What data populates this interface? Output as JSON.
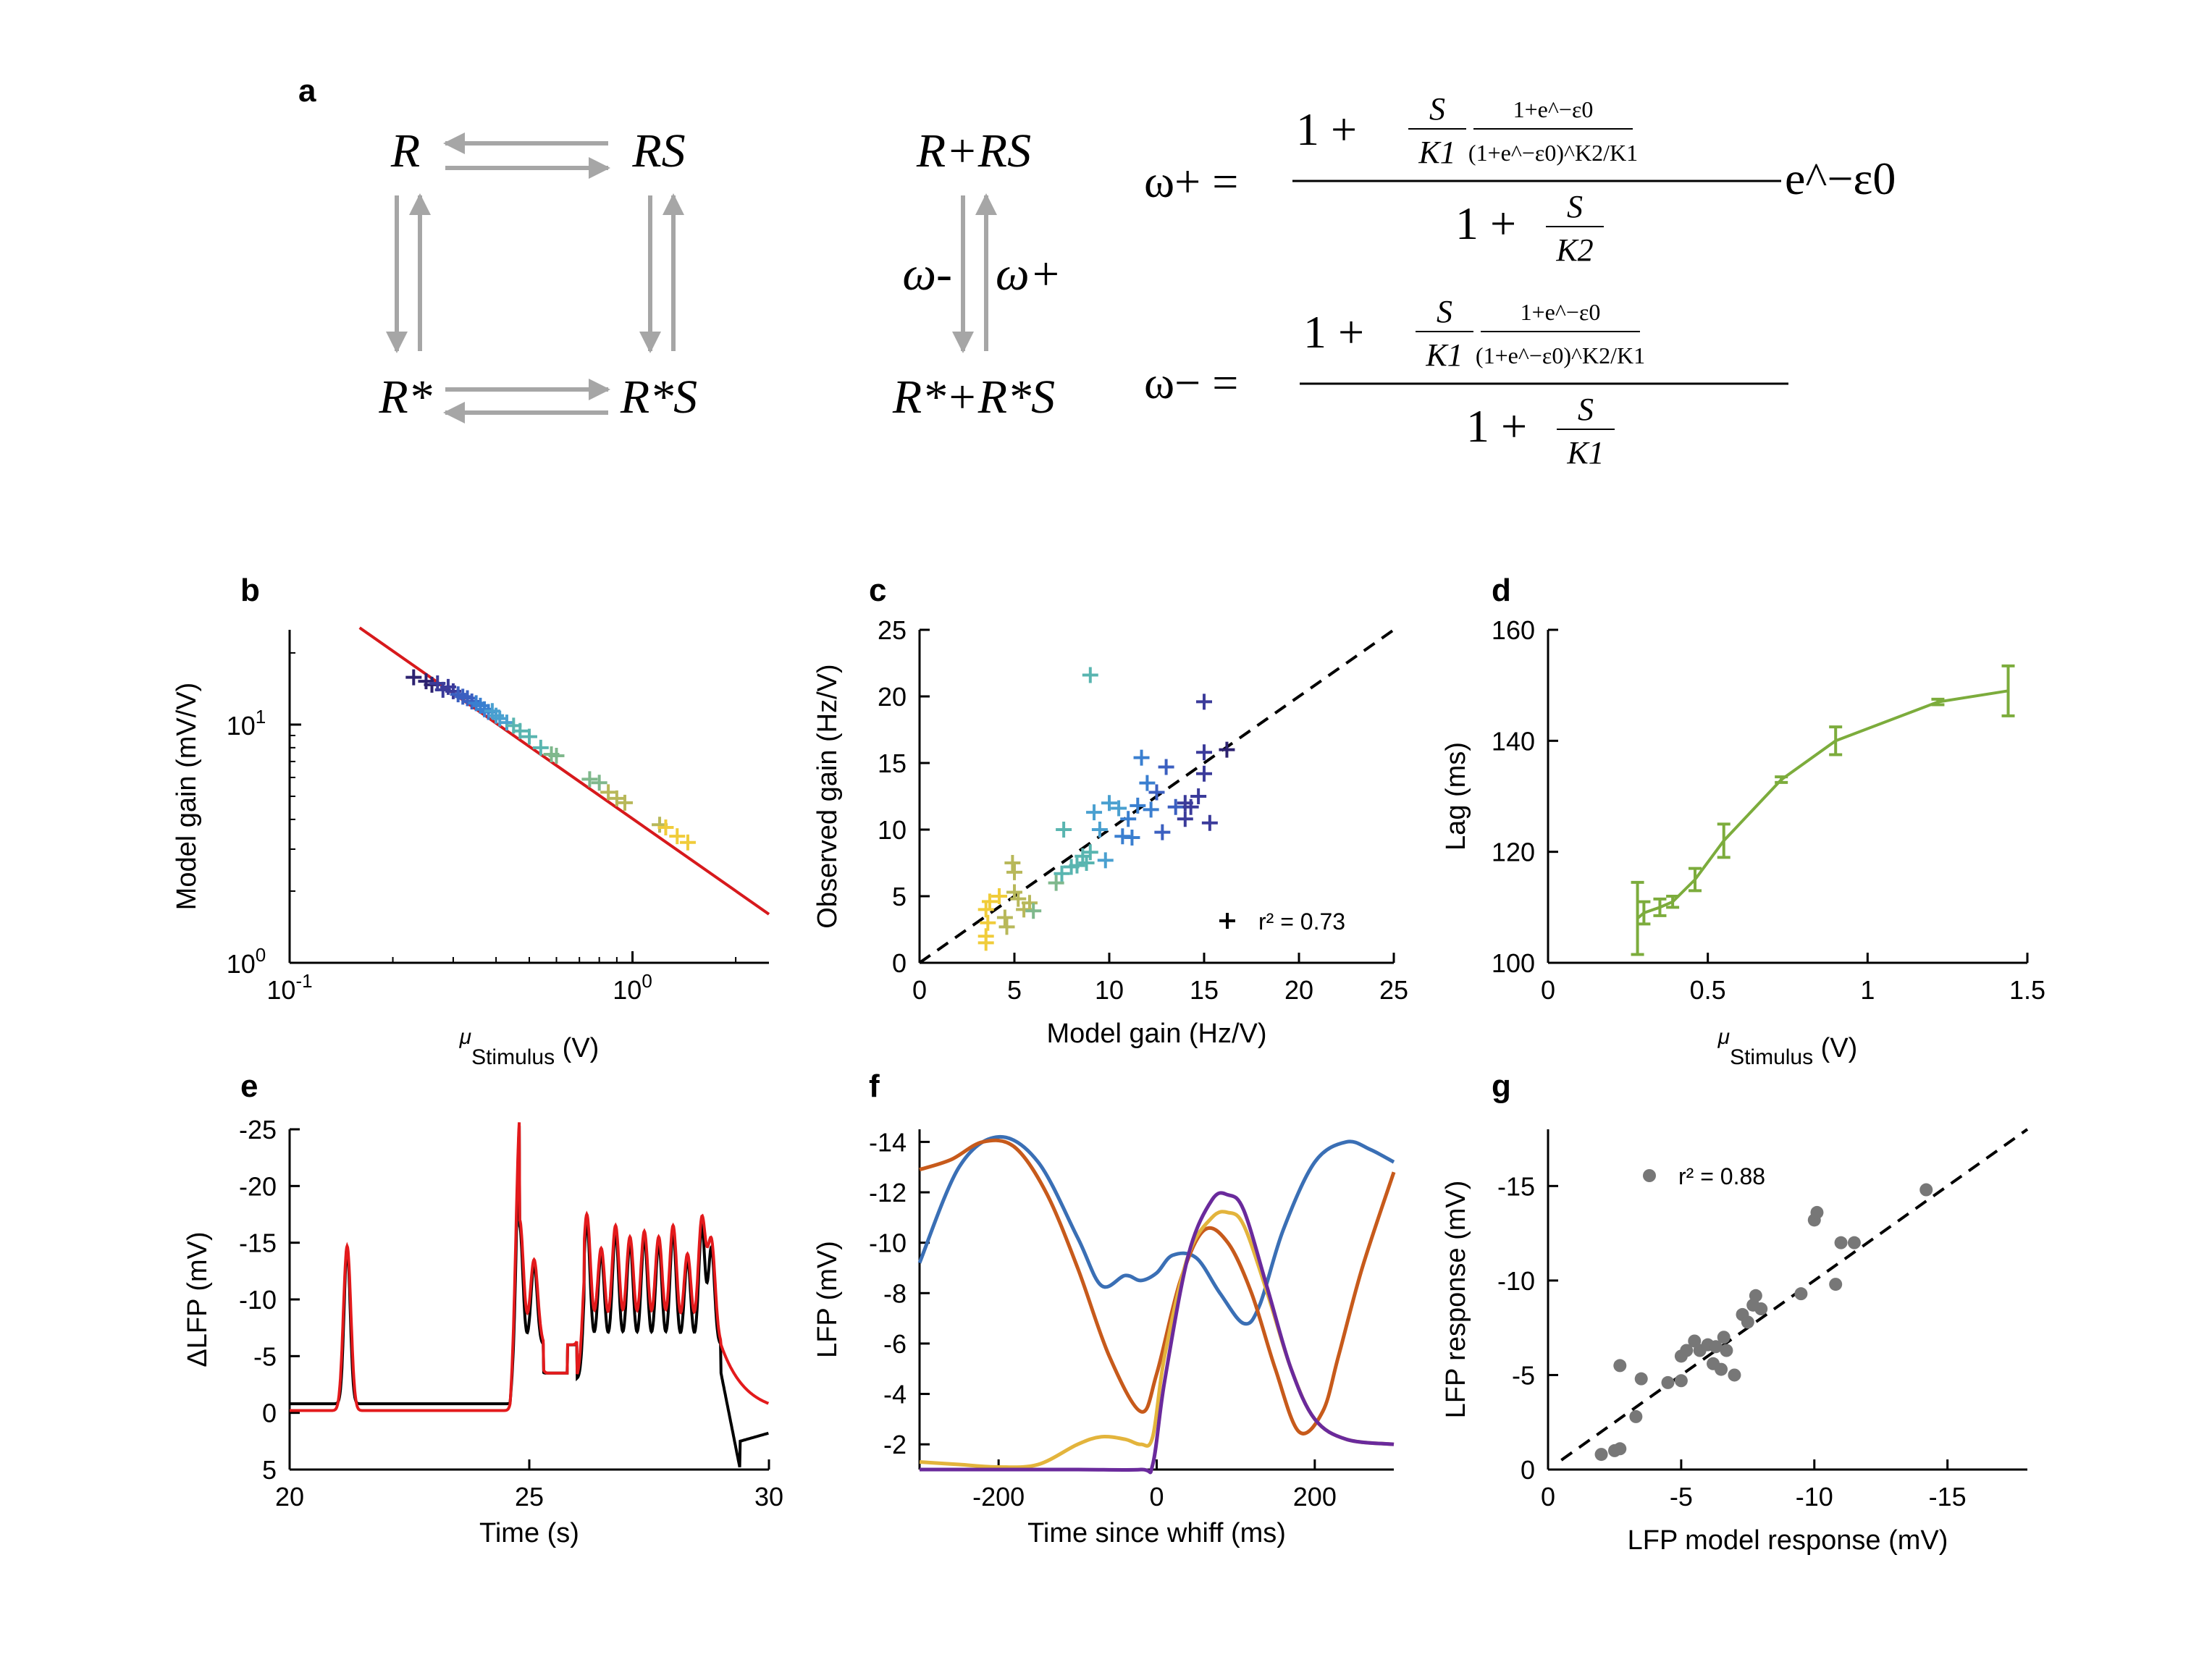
{
  "panel_labels": [
    "a",
    "b",
    "c",
    "d",
    "e",
    "f",
    "g"
  ],
  "panel_a": {
    "states": {
      "R": "R",
      "RS": "RS",
      "Rstar": "R*",
      "RstarS": "R*S",
      "combo_top": "R+RS",
      "combo_bottom": "R*+R*S"
    },
    "rates": {
      "minus": "ω-",
      "plus": "ω+"
    },
    "equations": {
      "plus_lhs": "ω+ =",
      "minus_lhs": "ω− =",
      "num_prefix": "1 +",
      "frac_S": "S",
      "frac_K1": "K1",
      "frac_K2": "K2",
      "inner_num": "1+e^−ε0",
      "inner_den": "(1+e^−ε0)^K2/K1",
      "exp_factor": "e^−ε0",
      "den_plus": "1 +",
      "den_minus": "1 +"
    },
    "arrow_color": "#a6a6a6"
  },
  "chart_data": [
    {
      "id": "b",
      "type": "scatter",
      "ylabel": "Model gain (mV/V)",
      "xlabel_mu": "μ",
      "xlabel_sub": "Stimulus",
      "xlabel_unit": "(V)",
      "xscale": "log",
      "yscale": "log",
      "xlim": [
        0.1,
        2.5
      ],
      "ylim": [
        1,
        25
      ],
      "xticks": [
        {
          "v": 0.1,
          "base": "10",
          "exp": "-1"
        },
        {
          "v": 1,
          "base": "10",
          "exp": "0"
        }
      ],
      "yticks": [
        {
          "v": 1,
          "base": "10",
          "exp": "0"
        },
        {
          "v": 10,
          "base": "10",
          "exp": "1"
        }
      ],
      "fit_line": {
        "color": "#d7191c",
        "points": [
          [
            0.16,
            25.5
          ],
          [
            2.5,
            1.6
          ]
        ]
      },
      "points": [
        [
          0.23,
          15.8
        ],
        [
          0.25,
          15.2
        ],
        [
          0.26,
          14.7
        ],
        [
          0.27,
          14.9
        ],
        [
          0.28,
          14.0
        ],
        [
          0.29,
          14.4
        ],
        [
          0.3,
          13.8
        ],
        [
          0.31,
          13.4
        ],
        [
          0.32,
          13.1
        ],
        [
          0.33,
          12.9
        ],
        [
          0.34,
          12.5
        ],
        [
          0.35,
          12.3
        ],
        [
          0.36,
          12.0
        ],
        [
          0.37,
          11.6
        ],
        [
          0.38,
          11.3
        ],
        [
          0.39,
          11.4
        ],
        [
          0.4,
          10.9
        ],
        [
          0.41,
          10.6
        ],
        [
          0.43,
          10.2
        ],
        [
          0.45,
          9.9
        ],
        [
          0.47,
          9.4
        ],
        [
          0.5,
          8.9
        ],
        [
          0.54,
          8.0
        ],
        [
          0.58,
          7.5
        ],
        [
          0.6,
          7.4
        ],
        [
          0.75,
          5.9
        ],
        [
          0.8,
          5.7
        ],
        [
          0.85,
          5.2
        ],
        [
          0.9,
          4.9
        ],
        [
          0.95,
          4.7
        ],
        [
          1.2,
          3.8
        ],
        [
          1.25,
          3.7
        ],
        [
          1.35,
          3.4
        ],
        [
          1.45,
          3.2
        ]
      ]
    },
    {
      "id": "c",
      "type": "scatter",
      "xlabel": "Model gain (Hz/V)",
      "ylabel": "Observed gain (Hz/V)",
      "xlim": [
        0,
        25
      ],
      "ylim": [
        0,
        25
      ],
      "xticks": [
        0,
        5,
        10,
        15,
        20,
        25
      ],
      "yticks": [
        0,
        5,
        10,
        15,
        20,
        25
      ],
      "legend": {
        "marker": "+",
        "text": "r² = 0.73"
      },
      "identity_line": true,
      "points": [
        [
          3.5,
          2.0
        ],
        [
          3.6,
          3.0
        ],
        [
          3.5,
          4.0
        ],
        [
          3.7,
          4.6
        ],
        [
          3.5,
          1.5
        ],
        [
          4.2,
          5.0
        ],
        [
          4.5,
          3.4
        ],
        [
          4.6,
          2.7
        ],
        [
          4.9,
          7.5
        ],
        [
          5.0,
          6.8
        ],
        [
          5.0,
          5.3
        ],
        [
          5.2,
          4.8
        ],
        [
          5.5,
          4.0
        ],
        [
          5.8,
          4.5
        ],
        [
          6.0,
          3.9
        ],
        [
          7.2,
          6.0
        ],
        [
          7.5,
          6.7
        ],
        [
          7.6,
          10.0
        ],
        [
          8.0,
          7.2
        ],
        [
          8.3,
          7.3
        ],
        [
          8.6,
          8.0
        ],
        [
          8.8,
          7.5
        ],
        [
          9.0,
          21.6
        ],
        [
          9.0,
          8.3
        ],
        [
          9.2,
          11.3
        ],
        [
          9.5,
          10.0
        ],
        [
          9.8,
          7.7
        ],
        [
          10.0,
          12.0
        ],
        [
          10.5,
          11.6
        ],
        [
          10.7,
          9.5
        ],
        [
          11.0,
          10.8
        ],
        [
          11.2,
          9.4
        ],
        [
          11.5,
          11.8
        ],
        [
          11.7,
          15.4
        ],
        [
          12.0,
          13.5
        ],
        [
          12.2,
          11.5
        ],
        [
          12.5,
          12.8
        ],
        [
          12.8,
          9.8
        ],
        [
          13.0,
          14.7
        ],
        [
          13.5,
          11.7
        ],
        [
          14.0,
          12.0
        ],
        [
          14.0,
          10.8
        ],
        [
          14.3,
          11.7
        ],
        [
          14.7,
          12.5
        ],
        [
          15.0,
          19.6
        ],
        [
          15.0,
          15.8
        ],
        [
          15.0,
          14.2
        ],
        [
          15.3,
          10.5
        ],
        [
          16.2,
          16.0
        ]
      ]
    },
    {
      "id": "d",
      "type": "line",
      "ylabel": "Lag (ms)",
      "xlabel_mu": "μ",
      "xlabel_sub": "Stimulus",
      "xlabel_unit": "(V)",
      "xlim": [
        0,
        1.5
      ],
      "ylim": [
        100,
        160
      ],
      "xticks": [
        0,
        0.5,
        1,
        1.5
      ],
      "yticks": [
        100,
        120,
        140,
        160
      ],
      "color": "#7cac3c",
      "x": [
        0.28,
        0.3,
        0.35,
        0.39,
        0.46,
        0.55,
        0.73,
        0.9,
        1.22,
        1.44
      ],
      "y": [
        108,
        109,
        110,
        111,
        115,
        122,
        133,
        140,
        147,
        149
      ],
      "err": [
        6.5,
        2,
        1.5,
        1,
        2,
        3,
        0.5,
        2.5,
        0.5,
        4.5
      ]
    },
    {
      "id": "e",
      "type": "line",
      "ylabel": "ΔLFP (mV)",
      "xlabel": "Time (s)",
      "xlim": [
        20,
        30
      ],
      "ylim": [
        5,
        -25
      ],
      "xticks": [
        20,
        25,
        30
      ],
      "yticks": [
        -25,
        -20,
        -15,
        -10,
        -5,
        0,
        5
      ],
      "series": [
        {
          "color": "#000000"
        },
        {
          "color": "#e31a1c"
        }
      ]
    },
    {
      "id": "f",
      "type": "line",
      "ylabel": "LFP (mV)",
      "xlabel": "Time since whiff (ms)",
      "xlim": [
        -300,
        300
      ],
      "ylim": [
        -1,
        -14.5
      ],
      "xticks": [
        -200,
        0,
        200
      ],
      "yticks": [
        -14,
        -12,
        -10,
        -8,
        -6,
        -4,
        -2
      ],
      "series": [
        {
          "color": "#3a6fb5",
          "x": [
            -300,
            -250,
            -200,
            -150,
            -100,
            -70,
            -40,
            -20,
            0,
            20,
            50,
            80,
            110,
            130,
            160,
            200,
            240,
            270,
            300
          ],
          "y": [
            -9.2,
            -13.0,
            -14.2,
            -13.2,
            -10.2,
            -8.3,
            -8.7,
            -8.5,
            -8.8,
            -9.5,
            -9.4,
            -8.0,
            -6.8,
            -7.5,
            -10.5,
            -13.2,
            -14.0,
            -13.7,
            -13.2
          ]
        },
        {
          "color": "#c75a1b",
          "x": [
            -300,
            -260,
            -220,
            -180,
            -140,
            -100,
            -60,
            -20,
            0,
            30,
            60,
            90,
            120,
            150,
            180,
            210,
            230,
            260,
            300
          ],
          "y": [
            -12.9,
            -13.3,
            -14.0,
            -13.8,
            -12.0,
            -9.0,
            -5.5,
            -3.3,
            -4.8,
            -8.5,
            -10.5,
            -10.0,
            -8.0,
            -5.0,
            -2.5,
            -3.3,
            -5.5,
            -9.0,
            -12.8
          ]
        },
        {
          "color": "#e3b43c",
          "x": [
            -300,
            -250,
            -200,
            -150,
            -100,
            -70,
            -40,
            -20,
            -5,
            10,
            40,
            70,
            90,
            110,
            140,
            170,
            200,
            240,
            300
          ],
          "y": [
            -1.3,
            -1.2,
            -1.1,
            -1.2,
            -2.0,
            -2.3,
            -2.2,
            -2.0,
            -2.3,
            -5.5,
            -9.5,
            -11.0,
            -11.2,
            -10.7,
            -8.0,
            -5.0,
            -3.0,
            -2.2,
            -2.0
          ]
        },
        {
          "color": "#6a2a9c",
          "x": [
            -300,
            -200,
            -100,
            -20,
            -5,
            10,
            40,
            70,
            90,
            110,
            140,
            170,
            200,
            240,
            300
          ],
          "y": [
            -1.0,
            -1.0,
            -1.0,
            -1.0,
            -1.2,
            -4.5,
            -9.5,
            -11.7,
            -11.9,
            -11.3,
            -8.2,
            -5.0,
            -3.0,
            -2.2,
            -2.0
          ]
        }
      ]
    },
    {
      "id": "g",
      "type": "scatter",
      "ylabel": "LFP response (mV)",
      "xlabel": "LFP model response (mV)",
      "xlim": [
        0,
        -18
      ],
      "ylim": [
        0,
        -18
      ],
      "xticks": [
        0,
        -5,
        -10,
        -15
      ],
      "yticks": [
        0,
        -5,
        -10,
        -15
      ],
      "color": "#777777",
      "identity_line": true,
      "legend": {
        "text": "r² = 0.88"
      },
      "points": [
        [
          -2.0,
          -0.8
        ],
        [
          -2.5,
          -1.0
        ],
        [
          -2.7,
          -1.1
        ],
        [
          -2.7,
          -5.5
        ],
        [
          -3.3,
          -2.8
        ],
        [
          -3.5,
          -4.8
        ],
        [
          -4.5,
          -4.6
        ],
        [
          -5.0,
          -4.7
        ],
        [
          -5.0,
          -6.0
        ],
        [
          -5.2,
          -6.3
        ],
        [
          -5.5,
          -6.8
        ],
        [
          -5.7,
          -6.3
        ],
        [
          -6.0,
          -6.6
        ],
        [
          -6.2,
          -5.6
        ],
        [
          -6.3,
          -6.5
        ],
        [
          -6.5,
          -5.3
        ],
        [
          -6.6,
          -7.0
        ],
        [
          -6.7,
          -6.3
        ],
        [
          -7.0,
          -5.0
        ],
        [
          -7.3,
          -8.2
        ],
        [
          -7.5,
          -7.8
        ],
        [
          -7.7,
          -8.7
        ],
        [
          -7.8,
          -9.2
        ],
        [
          -8.0,
          -8.5
        ],
        [
          -9.5,
          -9.3
        ],
        [
          -10.0,
          -13.2
        ],
        [
          -10.1,
          -13.6
        ],
        [
          -10.8,
          -9.8
        ],
        [
          -11.0,
          -12.0
        ],
        [
          -11.5,
          -12.0
        ],
        [
          -14.2,
          -14.8
        ]
      ]
    }
  ]
}
